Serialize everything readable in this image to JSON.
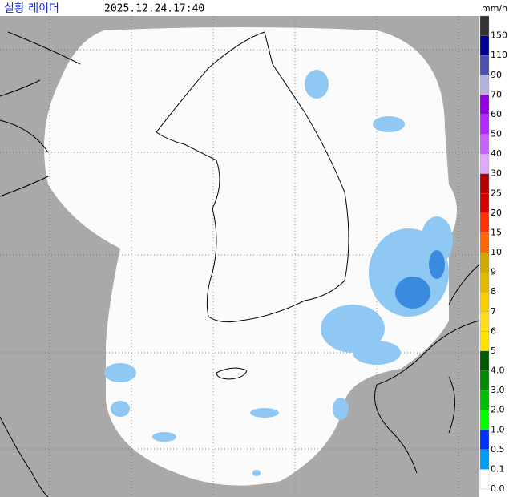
{
  "header": {
    "title": "실황 레이더",
    "timestamp": "2025.12.24.17:40",
    "unit": "mm/h"
  },
  "legend": {
    "labels": [
      "150",
      "110",
      "90",
      "70",
      "60",
      "50",
      "40",
      "30",
      "25",
      "20",
      "15",
      "10",
      "9",
      "8",
      "7",
      "6",
      "5",
      "4.0",
      "3.0",
      "2.0",
      "1.0",
      "0.5",
      "0.1",
      "0.0"
    ],
    "colors": [
      "#333333",
      "#000390",
      "#4c4eb1",
      "#b3b4de",
      "#9300e4",
      "#b329ff",
      "#c963ff",
      "#e0a9ff",
      "#b40000",
      "#d20000",
      "#ff3200",
      "#ff6600",
      "#ccaa00",
      "#e0b900",
      "#f9cd00",
      "#ffdc1f",
      "#ffe100",
      "#005a00",
      "#008c00",
      "#00be00",
      "#00ff00",
      "#0033f5",
      "#009bf5",
      "#ffffff"
    ]
  }
}
